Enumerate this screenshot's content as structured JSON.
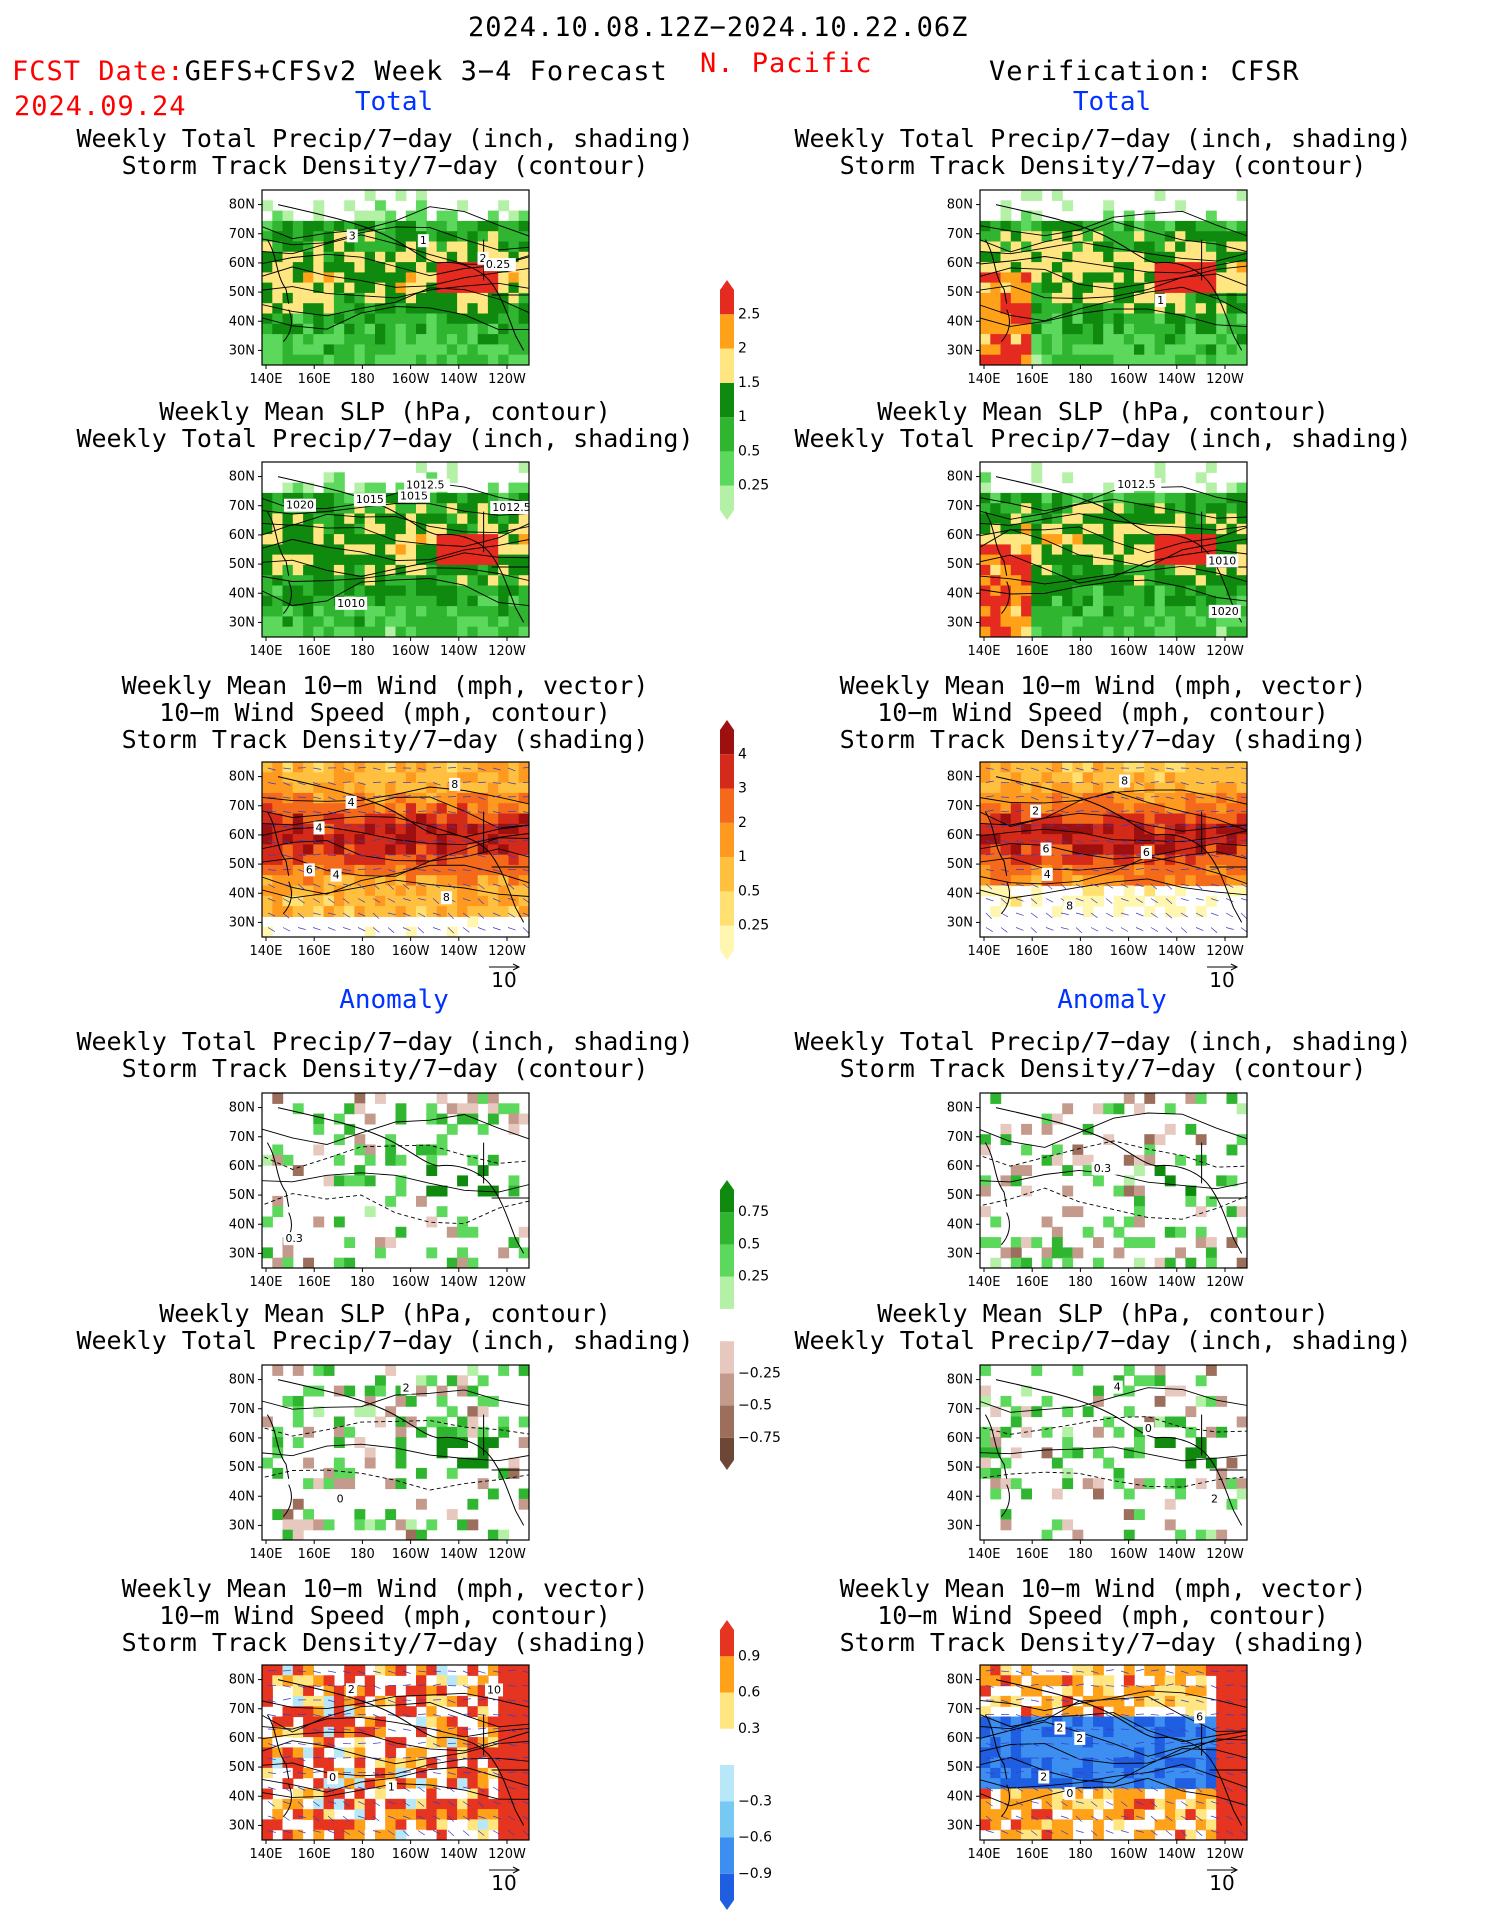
{
  "header": {
    "date_range": "2024.10.08.12Z−2024.10.22.06Z",
    "fcst_label": "FCST Date:",
    "fcst_model": "GEFS+CFSv2 Week 3−4 Forecast",
    "fcst_date": "2024.09.24",
    "region": "N. Pacific",
    "verification": "Verification: CFSR"
  },
  "sections": {
    "total": "Total",
    "anomaly": "Anomaly"
  },
  "titles": {
    "precip_storm": [
      "Weekly Total Precip/7−day (inch, shading)",
      "Storm Track Density/7−day (contour)"
    ],
    "slp_precip": [
      "Weekly Mean SLP (hPa, contour)",
      "Weekly Total Precip/7−day (inch, shading)"
    ],
    "wind": [
      "Weekly Mean 10−m Wind (mph, vector)",
      "10−m Wind Speed (mph, contour)",
      "Storm Track Density/7−day (shading)"
    ]
  },
  "axes": {
    "lat_labels": [
      "80N",
      "70N",
      "60N",
      "50N",
      "40N",
      "30N"
    ],
    "lon_labels": [
      "140E",
      "160E",
      "180",
      "160W",
      "140W",
      "120W"
    ]
  },
  "vector_ref": "10",
  "colorbars": {
    "precip_total": {
      "levels": [
        "0.25",
        "0.5",
        "1",
        "1.5",
        "2",
        "2.5"
      ],
      "colors": [
        "#b4f0a6",
        "#5cd95c",
        "#30b530",
        "#0f8a0f",
        "#ffe680",
        "#ffa21a",
        "#e52a1f"
      ]
    },
    "storm_total": {
      "levels": [
        "0.25",
        "0.5",
        "1",
        "2",
        "3",
        "4"
      ],
      "colors": [
        "#fff6b0",
        "#ffe070",
        "#ffc040",
        "#ff9a20",
        "#f46a1a",
        "#d42a1a",
        "#9e1010"
      ]
    },
    "precip_anom": {
      "levels": [
        "0.75",
        "0.5",
        "0.25",
        "−0.25",
        "−0.5",
        "−0.75"
      ],
      "colors": [
        "#0f8a0f",
        "#30b530",
        "#5cd95c",
        "#b4f0a6",
        "#ffffff",
        "#e7c8be",
        "#c49a8c",
        "#9c6e5c",
        "#6e4636"
      ]
    },
    "storm_anom": {
      "levels": [
        "0.9",
        "0.6",
        "0.3",
        "−0.3",
        "−0.6",
        "−0.9"
      ],
      "colors": [
        "#e5341f",
        "#ffa21a",
        "#ffe680",
        "#ffffff",
        "#b8e8f8",
        "#78c8f4",
        "#3c8ef0",
        "#1f5ee0"
      ]
    }
  },
  "panels": [
    {
      "id": "fcst-total-precip",
      "col": "left",
      "title": "precip_storm",
      "field": "precip",
      "labels": [
        "3",
        "2",
        "1",
        "0.25"
      ]
    },
    {
      "id": "fcst-total-slp",
      "col": "left",
      "title": "slp_precip",
      "field": "precip",
      "labels": [
        "1015",
        "1012.5",
        "1012.5",
        "1015",
        "1010",
        "1020"
      ]
    },
    {
      "id": "fcst-total-wind",
      "col": "left",
      "title": "wind",
      "field": "storm",
      "labels": [
        "8",
        "4",
        "4",
        "8",
        "4",
        "6"
      ]
    },
    {
      "id": "fcst-anom-precip",
      "col": "left",
      "title": "precip_storm",
      "field": "panom",
      "labels": [
        "0.3"
      ]
    },
    {
      "id": "fcst-anom-slp",
      "col": "left",
      "title": "slp_precip",
      "field": "panom",
      "labels": [
        "0",
        "2"
      ]
    },
    {
      "id": "fcst-anom-wind",
      "col": "left",
      "title": "wind",
      "field": "sanom",
      "labels": [
        "1",
        "0",
        "2",
        "10"
      ]
    },
    {
      "id": "verif-total-precip",
      "col": "right",
      "title": "precip_storm",
      "field": "precip",
      "labels": [
        "1"
      ]
    },
    {
      "id": "verif-total-slp",
      "col": "right",
      "title": "slp_precip",
      "field": "precip",
      "labels": [
        "1010",
        "1012.5",
        "1020"
      ]
    },
    {
      "id": "verif-total-wind",
      "col": "right",
      "title": "wind",
      "field": "storm",
      "labels": [
        "6",
        "4",
        "8",
        "2",
        "8",
        "6"
      ]
    },
    {
      "id": "verif-anom-precip",
      "col": "right",
      "title": "precip_storm",
      "field": "panom",
      "labels": [
        "0.3"
      ]
    },
    {
      "id": "verif-anom-slp",
      "col": "right",
      "title": "slp_precip",
      "field": "panom",
      "labels": [
        "0",
        "4",
        "2"
      ]
    },
    {
      "id": "verif-anom-wind",
      "col": "right",
      "title": "wind",
      "field": "sanom",
      "labels": [
        "6",
        "2",
        "0",
        "2",
        "2"
      ]
    }
  ],
  "chart_data": {
    "type": "heatmap",
    "x_range": [
      "140E",
      "120W"
    ],
    "y_range": [
      "30N",
      "80N"
    ]
  }
}
